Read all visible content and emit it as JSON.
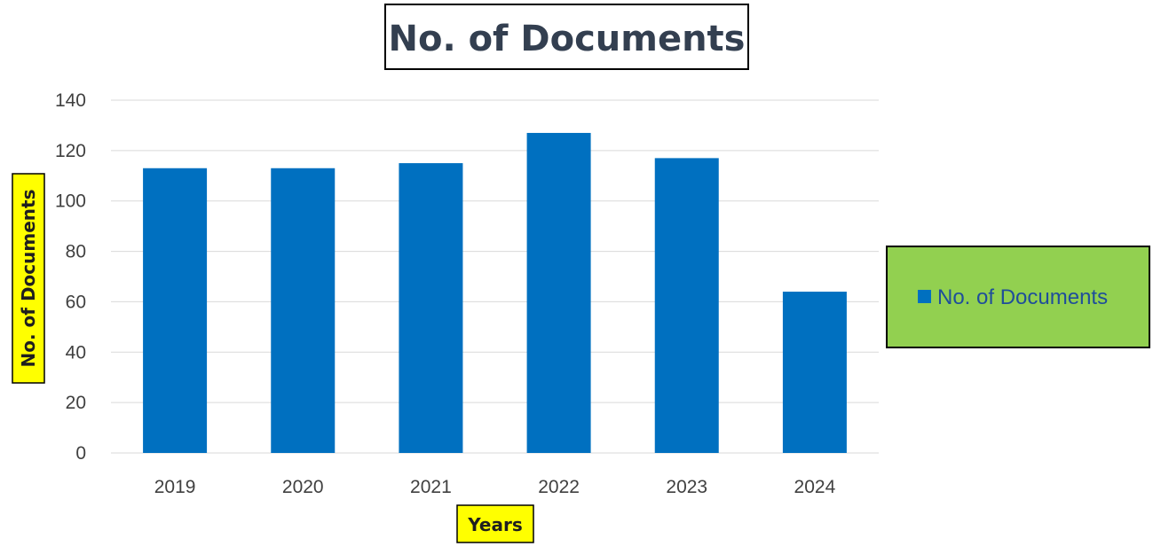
{
  "chart_data": {
    "type": "bar",
    "title": "No. of Documents",
    "xlabel": "Years",
    "ylabel": "No. of Documents",
    "categories": [
      "2019",
      "2020",
      "2021",
      "2022",
      "2023",
      "2024"
    ],
    "series": [
      {
        "name": "No. of Documents",
        "values": [
          113,
          113,
          115,
          127,
          117,
          64
        ]
      }
    ],
    "ylim": [
      0,
      140
    ],
    "yticks": [
      0,
      20,
      40,
      60,
      80,
      100,
      120,
      140
    ],
    "grid": true,
    "legend_position": "right"
  },
  "colors": {
    "bar": "#0070c0",
    "grid": "#d9d9d9",
    "axis_title_bg": "#ffff00",
    "legend_bg": "#92d050"
  }
}
